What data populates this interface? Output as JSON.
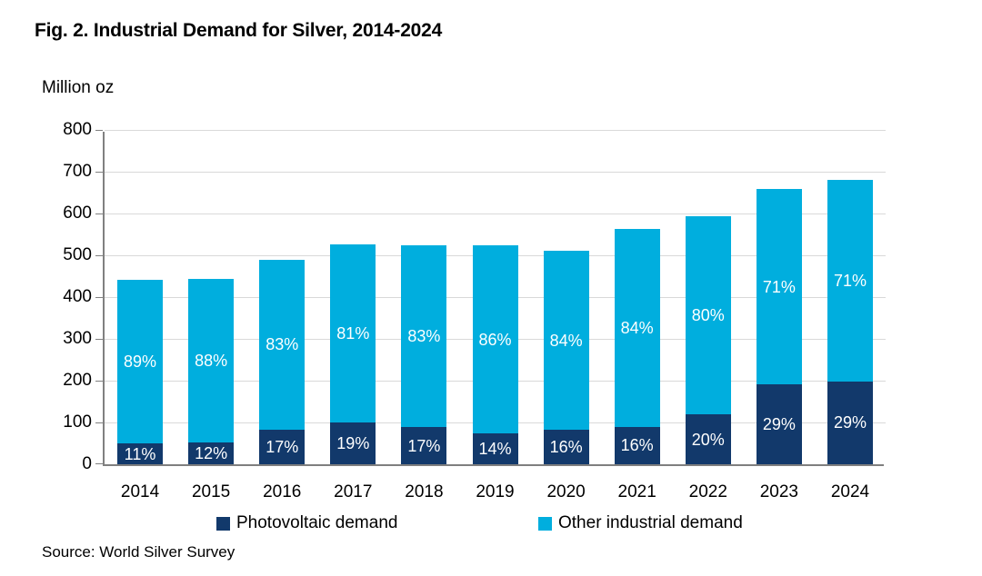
{
  "title": "Fig. 2. Industrial Demand for Silver, 2014-2024",
  "y_axis_unit": "Million oz",
  "source": "Source: World Silver Survey",
  "colors": {
    "photovoltaic": "#12396B",
    "other_industrial": "#00AEDE",
    "gridline": "#D9D9D9",
    "axis": "#808080",
    "bar_label_text": "#FFFFFF"
  },
  "legend": [
    {
      "label": "Photovoltaic demand",
      "color_key": "photovoltaic"
    },
    {
      "label": "Other industrial demand",
      "color_key": "other_industrial"
    }
  ],
  "chart_data": {
    "type": "bar",
    "stacked": true,
    "title": "Fig. 2. Industrial Demand for Silver, 2014-2024",
    "ylabel": "Million oz",
    "xlabel": "",
    "ylim": [
      0,
      800
    ],
    "y_ticks": [
      0,
      100,
      200,
      300,
      400,
      500,
      600,
      700,
      800
    ],
    "grid": true,
    "legend_position": "bottom",
    "categories": [
      "2014",
      "2015",
      "2016",
      "2017",
      "2018",
      "2019",
      "2020",
      "2021",
      "2022",
      "2023",
      "2024"
    ],
    "series": [
      {
        "name": "Photovoltaic demand",
        "values": [
          49,
          53,
          83,
          100,
          89,
          73,
          82,
          90,
          119,
          191,
          198
        ],
        "labels": [
          "11%",
          "12%",
          "17%",
          "19%",
          "17%",
          "14%",
          "16%",
          "16%",
          "20%",
          "29%",
          "29%"
        ]
      },
      {
        "name": "Other industrial demand",
        "values": [
          392,
          390,
          407,
          427,
          436,
          451,
          429,
          473,
          474,
          467,
          483
        ],
        "labels": [
          "89%",
          "88%",
          "83%",
          "81%",
          "83%",
          "86%",
          "84%",
          "84%",
          "80%",
          "71%",
          "71%"
        ]
      }
    ],
    "totals": [
      441,
      443,
      490,
      527,
      525,
      524,
      511,
      563,
      593,
      658,
      681
    ]
  }
}
